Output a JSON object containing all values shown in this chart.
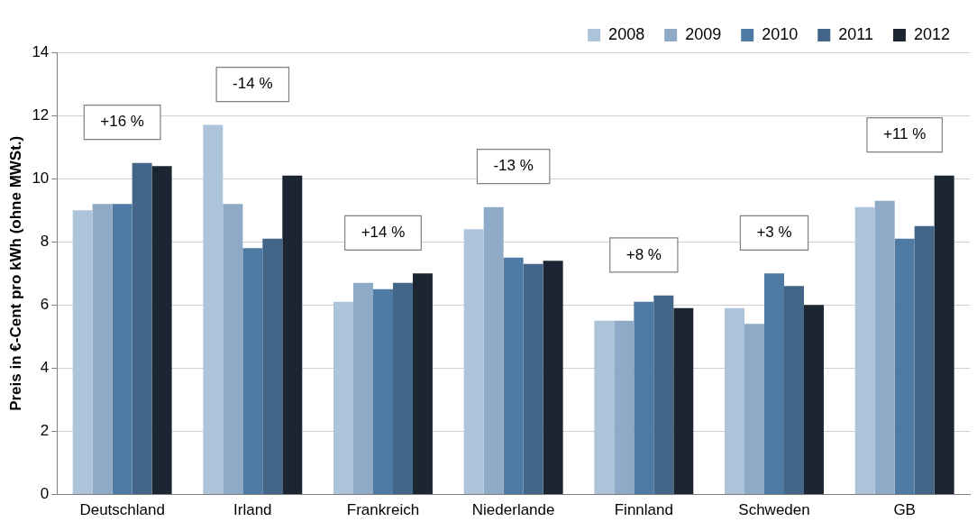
{
  "chart_data": {
    "type": "bar",
    "ylabel": "Preis in €-Cent pro kWh (ohne MWSt.)",
    "categories": [
      "Deutschland",
      "Irland",
      "Frankreich",
      "Niederlande",
      "Finnland",
      "Schweden",
      "GB"
    ],
    "series": [
      {
        "name": "2008",
        "color": "#adc3d9",
        "values": [
          9.0,
          11.7,
          6.1,
          8.4,
          5.5,
          5.9,
          9.1
        ]
      },
      {
        "name": "2009",
        "color": "#8faac6",
        "values": [
          9.2,
          9.2,
          6.7,
          9.1,
          5.5,
          5.4,
          9.3
        ]
      },
      {
        "name": "2010",
        "color": "#4f7aa3",
        "values": [
          9.2,
          7.8,
          6.5,
          7.5,
          6.1,
          7.0,
          8.1
        ]
      },
      {
        "name": "2011",
        "color": "#436587",
        "values": [
          10.5,
          8.1,
          6.7,
          7.3,
          6.3,
          6.6,
          8.5
        ]
      },
      {
        "name": "2012",
        "color": "#1b2632",
        "values": [
          10.4,
          10.1,
          7.0,
          7.4,
          5.9,
          6.0,
          10.1
        ]
      }
    ],
    "ylim": [
      0,
      14
    ],
    "yticks": [
      0,
      2,
      4,
      6,
      8,
      10,
      12,
      14
    ],
    "grid": "y",
    "legend": "top right",
    "annotations": [
      "+16 %",
      "-14 %",
      "+14 %",
      "-13 %",
      "+8 %",
      "+3 %",
      "+11 %"
    ]
  }
}
